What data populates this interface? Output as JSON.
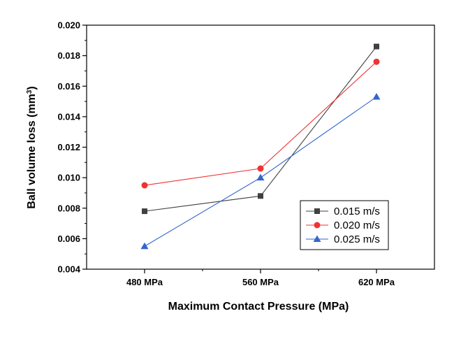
{
  "chart_data": {
    "type": "line",
    "title": "",
    "xlabel": "Maximum Contact Pressure (MPa)",
    "ylabel_main": "Ball volume loss (mm",
    "ylabel_sup": "3",
    "ylabel_end": ")",
    "categories": [
      "480 MPa",
      "560 MPa",
      "620 MPa"
    ],
    "ylim": [
      0.004,
      0.02
    ],
    "yticks": [
      "0.004",
      "0.006",
      "0.008",
      "0.010",
      "0.012",
      "0.014",
      "0.016",
      "0.018",
      "0.020"
    ],
    "grid": false,
    "legend_position": "lower-right",
    "series": [
      {
        "name": "0.015 m/s",
        "values": [
          0.0078,
          0.0088,
          0.0186
        ],
        "color": "#404040",
        "marker": "square"
      },
      {
        "name": "0.020 m/s",
        "values": [
          0.0095,
          0.0106,
          0.0176
        ],
        "color": "#ee3333",
        "marker": "circle"
      },
      {
        "name": "0.025 m/s",
        "values": [
          0.0055,
          0.01,
          0.0153
        ],
        "color": "#3366cc",
        "marker": "triangle"
      }
    ]
  }
}
